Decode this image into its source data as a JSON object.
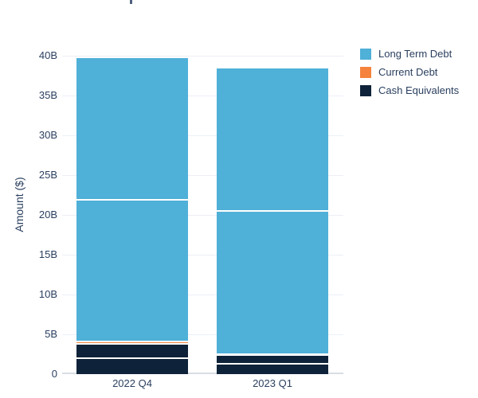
{
  "title": {
    "clipped_fragment_color": "#4F6180"
  },
  "y_axis": {
    "label": "Amount ($)",
    "ticks": [
      "0",
      "5B",
      "10B",
      "15B",
      "20B",
      "25B",
      "30B",
      "35B",
      "40B"
    ],
    "tick_values": [
      0,
      5,
      10,
      15,
      20,
      25,
      30,
      35,
      40
    ]
  },
  "x_axis": {
    "categories": [
      "2022 Q4",
      "2023 Q1"
    ]
  },
  "legend": {
    "items": [
      {
        "label": "Long Term Debt",
        "color": "#4FB0D8"
      },
      {
        "label": "Current Debt",
        "color": "#F5833D"
      },
      {
        "label": "Cash Equivalents",
        "color": "#0E2339"
      }
    ]
  },
  "colors": {
    "text": "#2A3F5F",
    "gridline": "#ECEFF6",
    "axis_line": "#D8DDE5",
    "background": "#FFFFFF",
    "segment_divider": "#FFFFFF"
  },
  "chart_data": {
    "type": "bar",
    "stacked": true,
    "categories": [
      "2022 Q4",
      "2023 Q1"
    ],
    "series": [
      {
        "name": "Long Term Debt",
        "color": "#4FB0D8",
        "values": [
          35.6,
          35.85
        ]
      },
      {
        "name": "Current Debt",
        "color": "#F5833D",
        "values": [
          0.35,
          0.1
        ]
      },
      {
        "name": "Cash Equivalents",
        "color": "#0E2339",
        "values": [
          3.8,
          2.45
        ]
      }
    ],
    "totals": [
      39.75,
      38.4
    ],
    "stack_order_bottom_to_top": [
      "Cash Equivalents",
      "Current Debt",
      "Long Term Debt"
    ],
    "sub_segments_bottom_to_top": [
      [
        {
          "series": "Cash Equivalents",
          "value": 2.0
        },
        {
          "series": "Cash Equivalents",
          "value": 1.8
        },
        {
          "series": "Current Debt",
          "value": 0.35
        },
        {
          "series": "Long Term Debt",
          "value": 17.8
        },
        {
          "series": "Long Term Debt",
          "value": 17.8
        }
      ],
      [
        {
          "series": "Cash Equivalents",
          "value": 1.3
        },
        {
          "series": "Cash Equivalents",
          "value": 1.15
        },
        {
          "series": "Current Debt",
          "value": 0.1
        },
        {
          "series": "Long Term Debt",
          "value": 17.95
        },
        {
          "series": "Long Term Debt",
          "value": 17.9
        }
      ]
    ],
    "title": "",
    "xlabel": "",
    "ylabel": "Amount ($)",
    "ylim": [
      0,
      42.5
    ],
    "grid": true,
    "legend_position": "top-right-outside"
  }
}
